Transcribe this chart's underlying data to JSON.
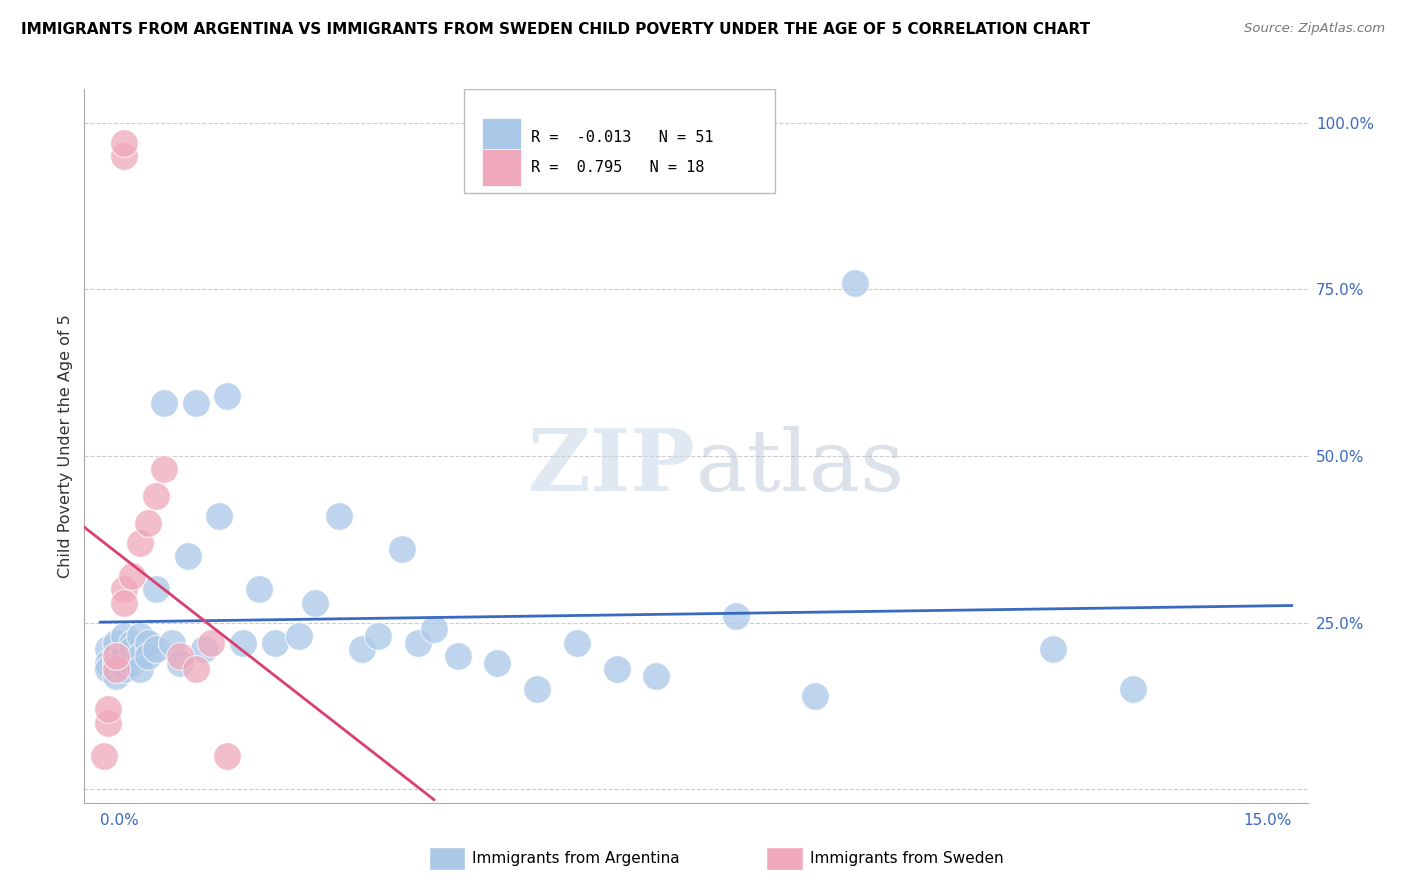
{
  "title": "IMMIGRANTS FROM ARGENTINA VS IMMIGRANTS FROM SWEDEN CHILD POVERTY UNDER THE AGE OF 5 CORRELATION CHART",
  "source": "Source: ZipAtlas.com",
  "ylabel": "Child Poverty Under the Age of 5",
  "xlim": [
    0.0,
    0.15
  ],
  "ylim": [
    0.0,
    1.05
  ],
  "argentina_R": -0.013,
  "argentina_N": 51,
  "sweden_R": 0.795,
  "sweden_N": 18,
  "argentina_color": "#aac8e8",
  "sweden_color": "#f0a8bc",
  "argentina_line_color": "#3a6abf",
  "sweden_line_color": "#d84070",
  "ytick_vals": [
    0.0,
    0.25,
    0.5,
    0.75,
    1.0
  ],
  "ytick_labels": [
    "",
    "25.0%",
    "50.0%",
    "75.0%",
    "100.0%"
  ],
  "argentina_x": [
    0.001,
    0.001,
    0.001,
    0.002,
    0.002,
    0.002,
    0.002,
    0.003,
    0.003,
    0.003,
    0.003,
    0.004,
    0.004,
    0.004,
    0.005,
    0.005,
    0.005,
    0.006,
    0.006,
    0.007,
    0.007,
    0.008,
    0.009,
    0.01,
    0.011,
    0.012,
    0.013,
    0.015,
    0.016,
    0.018,
    0.02,
    0.022,
    0.025,
    0.027,
    0.03,
    0.033,
    0.035,
    0.038,
    0.04,
    0.042,
    0.045,
    0.05,
    0.055,
    0.06,
    0.065,
    0.07,
    0.08,
    0.09,
    0.095,
    0.12,
    0.13
  ],
  "argentina_y": [
    0.21,
    0.19,
    0.18,
    0.22,
    0.2,
    0.19,
    0.17,
    0.21,
    0.2,
    0.23,
    0.18,
    0.22,
    0.19,
    0.21,
    0.23,
    0.2,
    0.18,
    0.22,
    0.2,
    0.3,
    0.21,
    0.58,
    0.22,
    0.19,
    0.35,
    0.58,
    0.21,
    0.41,
    0.59,
    0.22,
    0.3,
    0.22,
    0.23,
    0.28,
    0.41,
    0.21,
    0.23,
    0.36,
    0.22,
    0.24,
    0.2,
    0.19,
    0.15,
    0.22,
    0.18,
    0.17,
    0.26,
    0.14,
    0.76,
    0.21,
    0.15
  ],
  "sweden_x": [
    0.0005,
    0.001,
    0.001,
    0.002,
    0.002,
    0.003,
    0.003,
    0.003,
    0.003,
    0.004,
    0.005,
    0.006,
    0.007,
    0.008,
    0.01,
    0.012,
    0.014,
    0.016
  ],
  "sweden_y": [
    0.05,
    0.1,
    0.12,
    0.18,
    0.2,
    0.95,
    0.97,
    0.3,
    0.28,
    0.32,
    0.37,
    0.4,
    0.44,
    0.48,
    0.2,
    0.18,
    0.22,
    0.05
  ]
}
